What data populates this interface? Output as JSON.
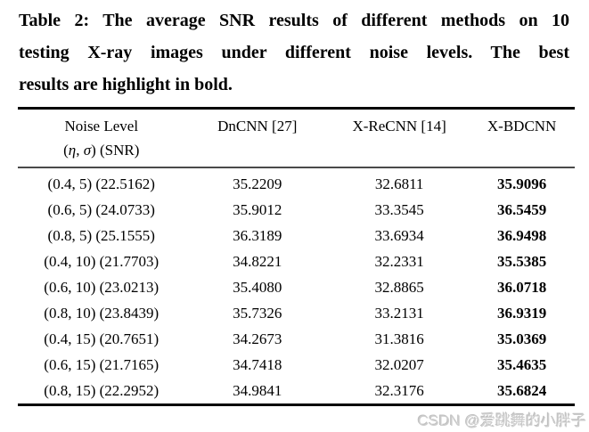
{
  "caption": {
    "lines": [
      "Table 2: The average SNR results of different methods on 10",
      "testing X-ray images under different noise levels. The best",
      "results are highlight in bold."
    ]
  },
  "table": {
    "header": {
      "noise_line1": "Noise Level",
      "noise_line2": {
        "open": "(",
        "eta": "η",
        "sep": ", ",
        "sigma": "σ",
        "close": ") (SNR)"
      },
      "methods": [
        "DnCNN [27]",
        "X-ReCNN [14]",
        "X-BDCNN"
      ]
    },
    "rows": [
      {
        "noise": "(0.4, 5) (22.5162)",
        "dncnn": "35.2209",
        "xrecnn": "32.6811",
        "xbdcnn": "35.9096"
      },
      {
        "noise": "(0.6, 5) (24.0733)",
        "dncnn": "35.9012",
        "xrecnn": "33.3545",
        "xbdcnn": "36.5459"
      },
      {
        "noise": "(0.8, 5) (25.1555)",
        "dncnn": "36.3189",
        "xrecnn": "33.6934",
        "xbdcnn": "36.9498"
      },
      {
        "noise": "(0.4, 10) (21.7703)",
        "dncnn": "34.8221",
        "xrecnn": "32.2331",
        "xbdcnn": "35.5385"
      },
      {
        "noise": "(0.6, 10) (23.0213)",
        "dncnn": "35.4080",
        "xrecnn": "32.8865",
        "xbdcnn": "36.0718"
      },
      {
        "noise": "(0.8, 10) (23.8439)",
        "dncnn": "35.7326",
        "xrecnn": "33.2131",
        "xbdcnn": "36.9319"
      },
      {
        "noise": "(0.4, 15) (20.7651)",
        "dncnn": "34.2673",
        "xrecnn": "31.3816",
        "xbdcnn": "35.0369"
      },
      {
        "noise": "(0.6, 15) (21.7165)",
        "dncnn": "34.7418",
        "xrecnn": "32.0207",
        "xbdcnn": "35.4635"
      },
      {
        "noise": "(0.8, 15) (22.2952)",
        "dncnn": "34.9841",
        "xrecnn": "32.3176",
        "xbdcnn": "35.6824"
      }
    ],
    "bold_column": "X-BDCNN"
  },
  "watermark": {
    "text": "CSDN @爱跳舞的小胖子"
  },
  "colors": {
    "text": "#000000",
    "rule": "#000000",
    "midrule": "#4a4a4a",
    "watermark": "#cccccc",
    "background": "#ffffff"
  }
}
